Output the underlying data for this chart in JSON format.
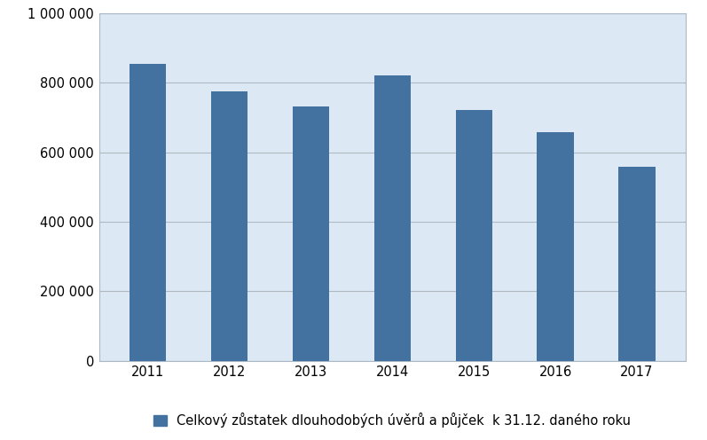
{
  "categories": [
    "2011",
    "2012",
    "2013",
    "2014",
    "2015",
    "2016",
    "2017"
  ],
  "values": [
    855000,
    775000,
    733000,
    820000,
    722000,
    657000,
    558000
  ],
  "bar_color": "#4472a0",
  "plot_bg_color": "#dce9f5",
  "fig_bg_color": "#ffffff",
  "ylim": [
    0,
    1000000
  ],
  "ytick_step": 200000,
  "grid_color": "#b0b8c0",
  "border_color": "#aab8c5",
  "legend_label": "Celkový zůstatek dlouhodobých úvěrů a půjček  k 31.12. daného roku",
  "tick_fontsize": 10.5,
  "legend_fontsize": 10.5,
  "bar_width": 0.45
}
